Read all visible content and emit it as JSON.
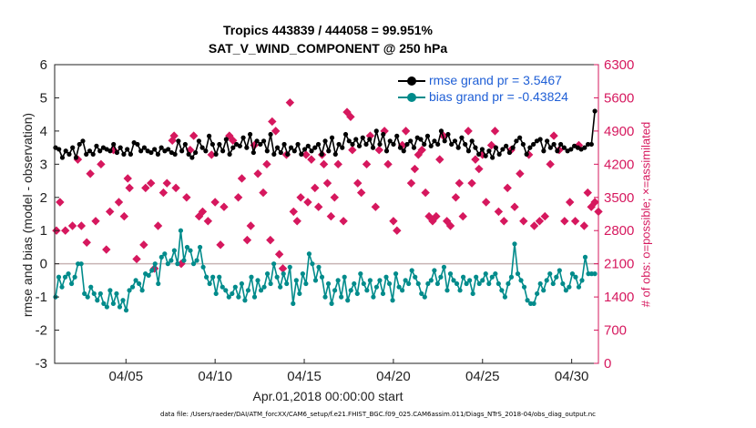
{
  "colors": {
    "rmse": "#000000",
    "bias": "#008b8b",
    "nobs": "#d6185e",
    "zeroline": "#c8b4b4",
    "grid": "#e6e6e6",
    "legendText": "#1f5fd6"
  },
  "chart_data": {
    "type": "line",
    "title": "Tropics 443839 / 444058 = 99.951%",
    "subtitle": "SAT_V_WIND_COMPONENT @ 250 hPa",
    "xlabel": "Apr.01,2018 00:00:00 start",
    "ylabel": "rmse and bias (model - observation)",
    "ylabel_right": "# of obs: o=possible; ×=assimilated",
    "footnote": "data file: /Users/raeder/DAI/ATM_forcXX/CAM6_setup/f.e21.FHIST_BGC.f09_025.CAM6assim.011/Diags_NTrS_2018-04/obs_diag_output.nc",
    "xlim": [
      1,
      31.5
    ],
    "ylim": [
      -3,
      6
    ],
    "ylim_right": [
      0,
      6300
    ],
    "xticks": [
      {
        "value": 5,
        "label": "04/05"
      },
      {
        "value": 10,
        "label": "04/10"
      },
      {
        "value": 15,
        "label": "04/15"
      },
      {
        "value": 20,
        "label": "04/20"
      },
      {
        "value": 25,
        "label": "04/25"
      },
      {
        "value": 30,
        "label": "04/30"
      }
    ],
    "yticks": [
      -3,
      -2,
      -1,
      0,
      1,
      2,
      3,
      4,
      5,
      6
    ],
    "yticks_right": [
      0,
      700,
      1400,
      2100,
      2800,
      3500,
      4200,
      4900,
      5600,
      6300
    ],
    "legend": [
      {
        "series": "rmse",
        "label": "rmse grand pr = 3.5467"
      },
      {
        "series": "bias",
        "label": "bias grand pr = -0.43824"
      }
    ],
    "legend_position": "top-right",
    "series": [
      {
        "name": "rmse",
        "values": [
          3.5,
          3.45,
          3.2,
          3.4,
          3.3,
          3.5,
          3.2,
          3.6,
          3.7,
          3.3,
          3.4,
          3.3,
          3.55,
          3.4,
          3.5,
          3.45,
          3.4,
          3.6,
          3.35,
          3.5,
          3.3,
          3.45,
          3.3,
          3.65,
          3.6,
          3.4,
          3.5,
          3.4,
          3.35,
          3.45,
          3.3,
          3.5,
          3.4,
          3.45,
          3.35,
          3.3,
          3.7,
          3.4,
          3.6,
          3.3,
          3.2,
          3.35,
          3.7,
          3.5,
          3.4,
          3.85,
          3.6,
          3.3,
          3.6,
          3.4,
          3.75,
          3.3,
          3.5,
          3.6,
          3.55,
          3.8,
          3.5,
          3.9,
          3.35,
          3.7,
          3.6,
          3.7,
          3.4,
          3.9,
          3.3,
          3.5,
          3.35,
          3.6,
          3.3,
          3.5,
          3.4,
          3.6,
          3.3,
          3.45,
          3.55,
          3.4,
          3.5,
          3.6,
          3.3,
          3.7,
          3.4,
          3.8,
          3.3,
          3.6,
          3.5,
          3.9,
          3.7,
          3.6,
          3.75,
          3.55,
          3.8,
          3.6,
          3.75,
          3.5,
          4.0,
          3.6,
          3.9,
          3.4,
          3.7,
          3.6,
          3.85,
          3.5,
          3.4,
          3.6,
          3.7,
          3.5,
          3.8,
          3.75,
          3.6,
          3.85,
          3.55,
          3.7,
          3.6,
          4.0,
          3.7,
          3.9,
          3.6,
          3.7,
          3.5,
          3.8,
          3.6,
          3.4,
          3.7,
          3.5,
          3.3,
          3.45,
          3.25,
          3.4,
          3.2,
          3.5,
          3.3,
          3.45,
          3.55,
          3.35,
          3.5,
          3.7,
          3.8,
          3.6,
          3.3,
          3.5,
          3.6,
          3.7,
          3.75,
          3.4,
          3.7,
          3.5,
          3.6,
          3.4,
          3.6,
          3.5,
          3.4,
          3.45,
          3.55,
          3.5,
          3.45,
          3.5,
          3.6,
          3.6,
          4.6
        ]
      },
      {
        "name": "bias",
        "values": [
          -1.0,
          -0.4,
          -0.7,
          -0.4,
          -0.3,
          -0.6,
          -0.4,
          0.0,
          0.0,
          -0.9,
          -1.0,
          -0.7,
          -0.9,
          -1.1,
          -0.9,
          -1.2,
          -1.3,
          -0.8,
          -1.2,
          -0.9,
          -1.3,
          -1.1,
          -1.4,
          -0.8,
          -0.7,
          -0.5,
          -0.6,
          -0.8,
          -0.3,
          -0.35,
          -0.2,
          0.0,
          -0.6,
          0.2,
          0.3,
          0.0,
          0.1,
          0.4,
          0.0,
          1.0,
          0.1,
          0.5,
          0.4,
          0.0,
          0.1,
          0.5,
          -0.1,
          -0.4,
          -0.6,
          -0.4,
          -0.9,
          -0.4,
          -0.7,
          -0.8,
          -1.0,
          -0.9,
          -0.7,
          -1.0,
          -0.6,
          -1.1,
          -0.8,
          -0.4,
          -1.0,
          -0.5,
          -0.8,
          -0.7,
          -0.3,
          -0.6,
          0.0,
          -0.4,
          -0.7,
          -0.3,
          -0.6,
          -0.1,
          -1.2,
          -0.5,
          -0.9,
          -0.3,
          -0.6,
          0.3,
          0.0,
          -0.5,
          -0.1,
          -0.4,
          -1.0,
          -0.6,
          -1.2,
          -0.8,
          -0.5,
          -1.0,
          -0.4,
          -1.1,
          -0.8,
          -0.6,
          -0.9,
          -0.3,
          -0.6,
          -0.8,
          -0.5,
          -1.0,
          -0.7,
          -0.5,
          -0.9,
          -0.4,
          -0.6,
          -1.1,
          -0.3,
          -0.7,
          -0.8,
          -0.5,
          -0.6,
          -0.2,
          -0.4,
          -0.6,
          -0.9,
          -1.0,
          -0.6,
          -0.5,
          -0.2,
          -0.6,
          -0.4,
          -0.1,
          -0.8,
          -0.3,
          -0.5,
          -0.6,
          -0.8,
          -0.4,
          -0.6,
          -0.5,
          -0.9,
          -0.4,
          -0.6,
          -0.5,
          -0.3,
          -0.6,
          -0.4,
          -0.3,
          -0.6,
          -0.8,
          -1.0,
          -0.6,
          -0.4,
          0.6,
          -0.3,
          -0.5,
          -0.7,
          -1.1,
          -1.2,
          -1.2,
          -0.9,
          -0.6,
          -0.8,
          -0.5,
          -0.3,
          -0.6,
          -0.4,
          -0.2,
          -0.6,
          -0.8,
          -0.7,
          -0.3,
          -0.4,
          -0.7,
          -0.5,
          0.2,
          -0.3,
          -0.3,
          -0.3
        ]
      },
      {
        "name": "nobs",
        "points": [
          [
            1.1,
            2800
          ],
          [
            1.3,
            3400
          ],
          [
            1.6,
            2800
          ],
          [
            2.0,
            2900
          ],
          [
            2.3,
            4300
          ],
          [
            2.5,
            2900
          ],
          [
            2.8,
            2550
          ],
          [
            3.0,
            4000
          ],
          [
            3.3,
            3000
          ],
          [
            3.6,
            4200
          ],
          [
            3.9,
            2400
          ],
          [
            4.1,
            3200
          ],
          [
            4.3,
            4500
          ],
          [
            4.6,
            3400
          ],
          [
            4.9,
            3100
          ],
          [
            5.1,
            3900
          ],
          [
            5.2,
            3700
          ],
          [
            5.6,
            2200
          ],
          [
            6.0,
            2500
          ],
          [
            6.1,
            3700
          ],
          [
            6.4,
            3800
          ],
          [
            6.6,
            2000
          ],
          [
            6.8,
            2900
          ],
          [
            7.1,
            3600
          ],
          [
            7.3,
            3800
          ],
          [
            7.6,
            4700
          ],
          [
            7.7,
            4800
          ],
          [
            7.8,
            3700
          ],
          [
            8.1,
            2100
          ],
          [
            8.4,
            3500
          ],
          [
            8.6,
            4500
          ],
          [
            8.8,
            4800
          ],
          [
            9.1,
            3100
          ],
          [
            9.3,
            3200
          ],
          [
            9.6,
            3000
          ],
          [
            9.8,
            4400
          ],
          [
            10.0,
            3400
          ],
          [
            10.3,
            2500
          ],
          [
            10.5,
            3300
          ],
          [
            10.8,
            4800
          ],
          [
            11.0,
            4700
          ],
          [
            11.3,
            3500
          ],
          [
            11.5,
            3900
          ],
          [
            11.8,
            2600
          ],
          [
            12.0,
            2900
          ],
          [
            12.2,
            4600
          ],
          [
            12.4,
            4000
          ],
          [
            12.7,
            3600
          ],
          [
            12.9,
            4200
          ],
          [
            13.1,
            2600
          ],
          [
            13.2,
            5100
          ],
          [
            13.4,
            4900
          ],
          [
            13.6,
            2300
          ],
          [
            13.8,
            2000
          ],
          [
            14.0,
            4400
          ],
          [
            14.2,
            5500
          ],
          [
            14.4,
            3200
          ],
          [
            14.6,
            3000
          ],
          [
            14.8,
            3500
          ],
          [
            15.1,
            4400
          ],
          [
            15.2,
            3400
          ],
          [
            15.4,
            4300
          ],
          [
            15.6,
            3700
          ],
          [
            15.8,
            3300
          ],
          [
            16.0,
            4400
          ],
          [
            16.1,
            4200
          ],
          [
            16.3,
            3800
          ],
          [
            16.5,
            3100
          ],
          [
            16.7,
            3500
          ],
          [
            16.9,
            4200
          ],
          [
            17.2,
            3000
          ],
          [
            17.4,
            5300
          ],
          [
            17.6,
            5200
          ],
          [
            17.7,
            4500
          ],
          [
            18.0,
            3800
          ],
          [
            18.2,
            3600
          ],
          [
            18.5,
            4200
          ],
          [
            18.7,
            4800
          ],
          [
            19.0,
            3300
          ],
          [
            19.2,
            4500
          ],
          [
            19.5,
            4900
          ],
          [
            19.7,
            4200
          ],
          [
            20.0,
            3000
          ],
          [
            20.2,
            2800
          ],
          [
            20.5,
            4600
          ],
          [
            20.7,
            4900
          ],
          [
            21.0,
            3800
          ],
          [
            21.2,
            4100
          ],
          [
            21.4,
            4400
          ],
          [
            21.6,
            4500
          ],
          [
            21.8,
            3600
          ],
          [
            22.0,
            3100
          ],
          [
            22.2,
            3000
          ],
          [
            22.4,
            3100
          ],
          [
            22.6,
            4300
          ],
          [
            22.8,
            4800
          ],
          [
            23.0,
            3000
          ],
          [
            23.2,
            2900
          ],
          [
            23.5,
            3500
          ],
          [
            23.7,
            3800
          ],
          [
            23.9,
            3100
          ],
          [
            24.2,
            4900
          ],
          [
            24.4,
            3800
          ],
          [
            24.6,
            4300
          ],
          [
            24.8,
            4100
          ],
          [
            25.0,
            4400
          ],
          [
            25.2,
            3400
          ],
          [
            25.5,
            4600
          ],
          [
            25.7,
            4900
          ],
          [
            25.9,
            3200
          ],
          [
            26.2,
            3000
          ],
          [
            26.4,
            3700
          ],
          [
            26.6,
            4500
          ],
          [
            26.8,
            3300
          ],
          [
            27.1,
            4000
          ],
          [
            27.3,
            3000
          ],
          [
            27.6,
            4400
          ],
          [
            27.9,
            2900
          ],
          [
            28.2,
            3000
          ],
          [
            28.5,
            3100
          ],
          [
            28.8,
            4200
          ],
          [
            29.0,
            4800
          ],
          [
            29.3,
            4500
          ],
          [
            29.6,
            3000
          ],
          [
            29.9,
            3400
          ],
          [
            30.2,
            3000
          ],
          [
            30.4,
            4600
          ],
          [
            30.7,
            2900
          ],
          [
            30.9,
            3600
          ],
          [
            31.1,
            3300
          ],
          [
            31.3,
            3400
          ],
          [
            31.5,
            3200
          ]
        ]
      }
    ]
  }
}
